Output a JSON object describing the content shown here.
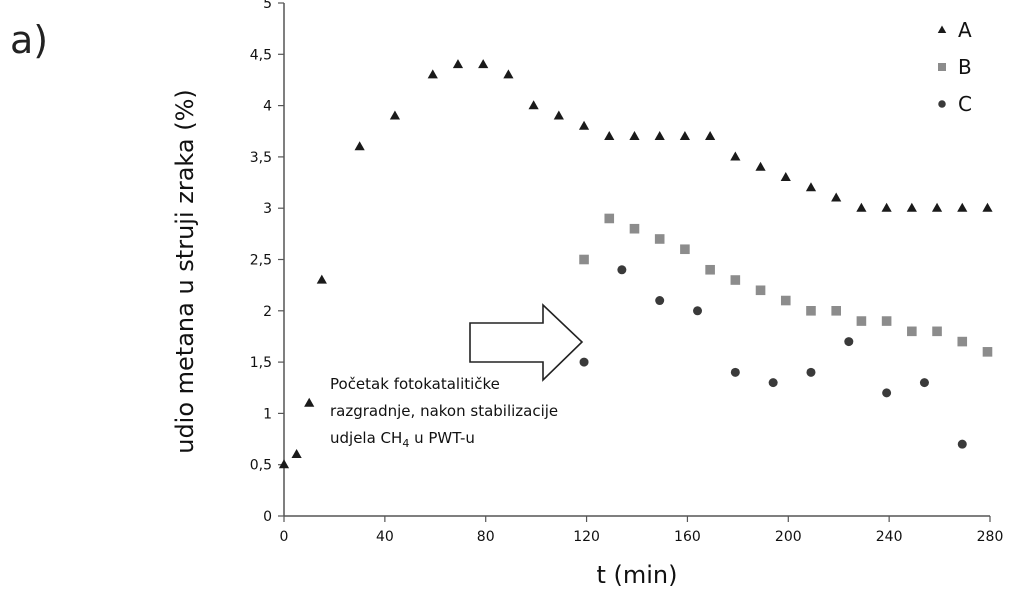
{
  "panel_label": "a)",
  "chart_data": {
    "type": "scatter",
    "title": "",
    "xlabel": "t (min)",
    "ylabel": "udio metana u struji zraka (%)",
    "xlim": [
      0,
      280
    ],
    "ylim": [
      0,
      5
    ],
    "xticks": [
      0,
      40,
      80,
      120,
      160,
      200,
      240,
      280
    ],
    "xtick_labels": [
      "0",
      "40",
      "80",
      "120",
      "160",
      "200",
      "240",
      "280"
    ],
    "yticks": [
      0,
      0.5,
      1,
      1.5,
      2,
      2.5,
      3,
      3.5,
      4,
      4.5,
      5
    ],
    "ytick_labels": [
      "0",
      "0,5",
      "1",
      "1,5",
      "2",
      "2,5",
      "3",
      "3,5",
      "4",
      "4,5",
      "5"
    ],
    "grid": false,
    "legend_position": "top-right",
    "series": [
      {
        "name": "A",
        "marker": "triangle",
        "color": "#1a1a1a",
        "x": [
          0,
          5,
          10,
          15,
          30,
          44,
          59,
          69,
          79,
          89,
          99,
          109,
          119,
          129,
          139,
          149,
          159,
          169,
          179,
          189,
          199,
          209,
          219,
          229,
          239,
          249,
          259,
          269,
          279
        ],
        "y": [
          0.5,
          0.6,
          1.1,
          2.3,
          3.6,
          3.9,
          4.3,
          4.4,
          4.4,
          4.3,
          4.0,
          3.9,
          3.8,
          3.7,
          3.7,
          3.7,
          3.7,
          3.7,
          3.5,
          3.4,
          3.3,
          3.2,
          3.1,
          3.0,
          3.0,
          3.0,
          3.0,
          3.0,
          3.0
        ]
      },
      {
        "name": "B",
        "marker": "square",
        "color": "#8c8c8c",
        "x": [
          119,
          129,
          139,
          149,
          159,
          169,
          179,
          189,
          199,
          209,
          219,
          229,
          239,
          249,
          259,
          269,
          279
        ],
        "y": [
          2.5,
          2.9,
          2.8,
          2.7,
          2.6,
          2.4,
          2.3,
          2.2,
          2.1,
          2.0,
          2.0,
          1.9,
          1.9,
          1.8,
          1.8,
          1.7,
          1.6
        ]
      },
      {
        "name": "C",
        "marker": "circle",
        "color": "#3a3a3a",
        "x": [
          119,
          134,
          149,
          164,
          179,
          194,
          209,
          224,
          239,
          254,
          269
        ],
        "y": [
          1.5,
          2.4,
          2.1,
          2.0,
          1.4,
          1.3,
          1.4,
          1.7,
          1.2,
          1.3,
          0.7
        ]
      }
    ],
    "annotation": {
      "lines": [
        "Početak fotokatalitičke",
        "razgradnje,  nakon stabilizacije"
      ],
      "line3_prefix": "udjela CH",
      "line3_sub": "4",
      "line3_suffix": " u PWT-u"
    }
  }
}
